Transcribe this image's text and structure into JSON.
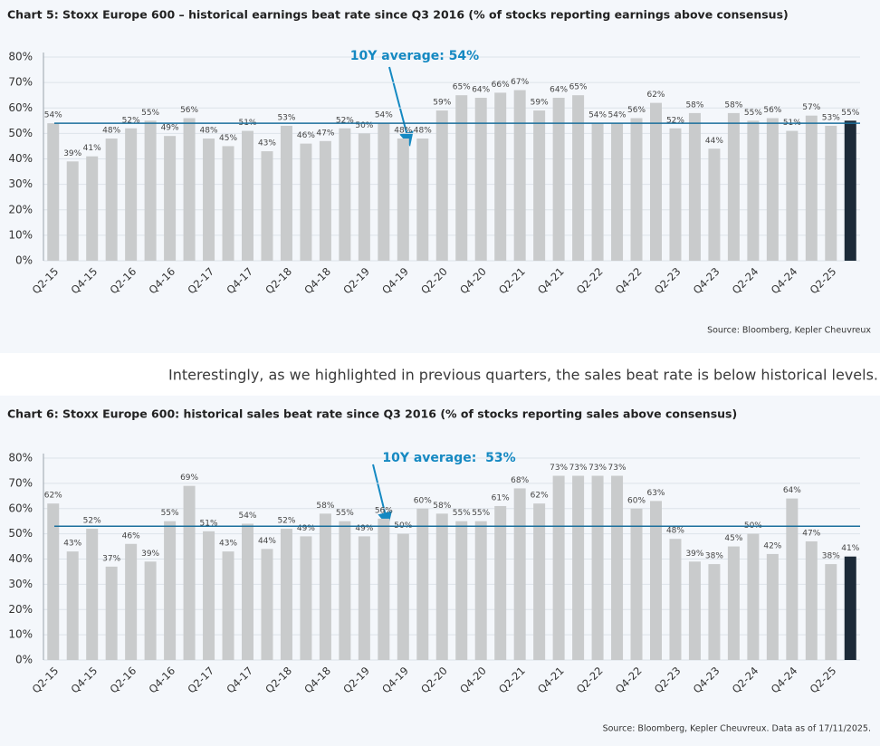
{
  "paragraph": "Interestingly, as we highlighted in previous quarters, the sales beat rate is below historical levels.",
  "chart_data": [
    {
      "type": "bar",
      "title": "Chart 5: Stoxx Europe 600 – historical earnings beat rate since Q3 2016 (% of stocks reporting earnings above consensus)",
      "source": "Source: Bloomberg, Kepler Cheuvreux",
      "annotation": "10Y average: 54%",
      "average": 54,
      "average_color": "#1b6f9c",
      "categories": [
        "Q2-15",
        null,
        "Q4-15",
        null,
        "Q2-16",
        null,
        "Q4-16",
        null,
        "Q2-17",
        null,
        "Q4-17",
        null,
        "Q2-18",
        null,
        "Q4-18",
        null,
        "Q2-19",
        null,
        "Q4-19",
        null,
        "Q2-20",
        null,
        "Q4-20",
        null,
        "Q2-21",
        null,
        "Q4-21",
        null,
        "Q2-22",
        null,
        "Q4-22",
        null,
        "Q2-23",
        null,
        "Q4-23",
        null,
        "Q2-24",
        null,
        "Q4-24",
        null,
        "Q2-25",
        null
      ],
      "values": [
        54,
        39,
        41,
        48,
        52,
        55,
        49,
        56,
        48,
        45,
        51,
        43,
        53,
        46,
        47,
        52,
        50,
        54,
        48,
        48,
        59,
        65,
        64,
        66,
        67,
        59,
        64,
        65,
        54,
        54,
        56,
        62,
        52,
        58,
        44,
        58,
        55,
        56,
        51,
        57,
        53,
        55
      ],
      "value_labels": [
        "54%",
        "39%",
        "41%",
        "48%",
        "52%",
        "55%",
        "49%",
        "56%",
        "48%",
        "45%",
        "51%",
        "43%",
        "53%",
        "46%",
        "47%",
        "52%",
        "50%",
        "54%",
        "48%",
        "48%",
        "59%",
        "65%",
        "64%",
        "66%",
        "67%",
        "59%",
        "64%",
        "65%",
        "54%",
        "54%",
        "56%",
        "62%",
        "52%",
        "58%",
        "44%",
        "58%",
        "55%",
        "56%",
        "51%",
        "57%",
        "53%",
        "55%"
      ],
      "colors": [
        "#c9cbcc",
        "#c9cbcc",
        "#c9cbcc",
        "#c9cbcc",
        "#c9cbcc",
        "#c9cbcc",
        "#c9cbcc",
        "#c9cbcc",
        "#c9cbcc",
        "#c9cbcc",
        "#c9cbcc",
        "#c9cbcc",
        "#c9cbcc",
        "#c9cbcc",
        "#c9cbcc",
        "#c9cbcc",
        "#c9cbcc",
        "#c9cbcc",
        "#c9cbcc",
        "#c9cbcc",
        "#c9cbcc",
        "#c9cbcc",
        "#c9cbcc",
        "#c9cbcc",
        "#c9cbcc",
        "#c9cbcc",
        "#c9cbcc",
        "#c9cbcc",
        "#c9cbcc",
        "#c9cbcc",
        "#c9cbcc",
        "#c9cbcc",
        "#c9cbcc",
        "#c9cbcc",
        "#c9cbcc",
        "#c9cbcc",
        "#c9cbcc",
        "#c9cbcc",
        "#c9cbcc",
        "#c9cbcc",
        "#c9cbcc",
        "#1c2a38"
      ],
      "ylim": [
        0,
        80
      ],
      "yticks": [
        {
          "value": 0,
          "label": "0%"
        },
        {
          "value": 10,
          "label": "10%"
        },
        {
          "value": 20,
          "label": "20%"
        },
        {
          "value": 30,
          "label": "30%"
        },
        {
          "value": 40,
          "label": "40%"
        },
        {
          "value": 50,
          "label": "50%"
        },
        {
          "value": 60,
          "label": "60%"
        },
        {
          "value": 70,
          "label": "70%"
        },
        {
          "value": 80,
          "label": "80%"
        }
      ],
      "grid": true
    },
    {
      "type": "bar",
      "title": "Chart 6: Stoxx Europe 600: historical sales beat rate since Q3 2016 (% of stocks reporting sales above consensus)",
      "source": "Source: Bloomberg, Kepler Cheuvreux. Data as of 17/11/2025.",
      "annotation": "10Y average:  53%",
      "average": 53,
      "average_color": "#1b6f9c",
      "categories": [
        "Q2-15",
        null,
        "Q4-15",
        null,
        "Q2-16",
        null,
        "Q4-16",
        null,
        "Q2-17",
        null,
        "Q4-17",
        null,
        "Q2-18",
        null,
        "Q4-18",
        null,
        "Q2-19",
        null,
        "Q4-19",
        null,
        "Q2-20",
        null,
        "Q4-20",
        null,
        "Q2-21",
        null,
        "Q4-21",
        null,
        "Q2-22",
        null,
        "Q4-22",
        null,
        "Q2-23",
        null,
        "Q4-23",
        null,
        "Q2-24",
        null,
        "Q4-24",
        null,
        "Q2-25",
        null
      ],
      "values": [
        62,
        43,
        52,
        37,
        46,
        39,
        55,
        69,
        51,
        43,
        54,
        44,
        52,
        49,
        58,
        55,
        49,
        56,
        50,
        60,
        58,
        55,
        55,
        61,
        68,
        62,
        73,
        73,
        73,
        73,
        60,
        63,
        48,
        39,
        38,
        45,
        50,
        42,
        64,
        47,
        38,
        41
      ],
      "value_labels": [
        "62%",
        "43%",
        "52%",
        "37%",
        "46%",
        "39%",
        "55%",
        "69%",
        "51%",
        "43%",
        "54%",
        "44%",
        "52%",
        "49%",
        "58%",
        "55%",
        "49%",
        "56%",
        "50%",
        "60%",
        "58%",
        "55%",
        "55%",
        "61%",
        "68%",
        "62%",
        "73%",
        "73%",
        "73%",
        "73%",
        "60%",
        "63%",
        "48%",
        "39%",
        "38%",
        "45%",
        "50%",
        "42%",
        "64%",
        "47%",
        "38%",
        "41%"
      ],
      "colors": [
        "#c9cbcc",
        "#c9cbcc",
        "#c9cbcc",
        "#c9cbcc",
        "#c9cbcc",
        "#c9cbcc",
        "#c9cbcc",
        "#c9cbcc",
        "#c9cbcc",
        "#c9cbcc",
        "#c9cbcc",
        "#c9cbcc",
        "#c9cbcc",
        "#c9cbcc",
        "#c9cbcc",
        "#c9cbcc",
        "#c9cbcc",
        "#c9cbcc",
        "#c9cbcc",
        "#c9cbcc",
        "#c9cbcc",
        "#c9cbcc",
        "#c9cbcc",
        "#c9cbcc",
        "#c9cbcc",
        "#c9cbcc",
        "#c9cbcc",
        "#c9cbcc",
        "#c9cbcc",
        "#c9cbcc",
        "#c9cbcc",
        "#c9cbcc",
        "#c9cbcc",
        "#c9cbcc",
        "#c9cbcc",
        "#c9cbcc",
        "#c9cbcc",
        "#c9cbcc",
        "#c9cbcc",
        "#c9cbcc",
        "#c9cbcc",
        "#1c2a38"
      ],
      "ylim": [
        0,
        80
      ],
      "yticks": [
        {
          "value": 0,
          "label": "0%"
        },
        {
          "value": 10,
          "label": "10%"
        },
        {
          "value": 20,
          "label": "20%"
        },
        {
          "value": 30,
          "label": "30%"
        },
        {
          "value": 40,
          "label": "40%"
        },
        {
          "value": 50,
          "label": "50%"
        },
        {
          "value": 60,
          "label": "60%"
        },
        {
          "value": 70,
          "label": "70%"
        },
        {
          "value": 80,
          "label": "80%"
        }
      ],
      "grid": true
    }
  ]
}
